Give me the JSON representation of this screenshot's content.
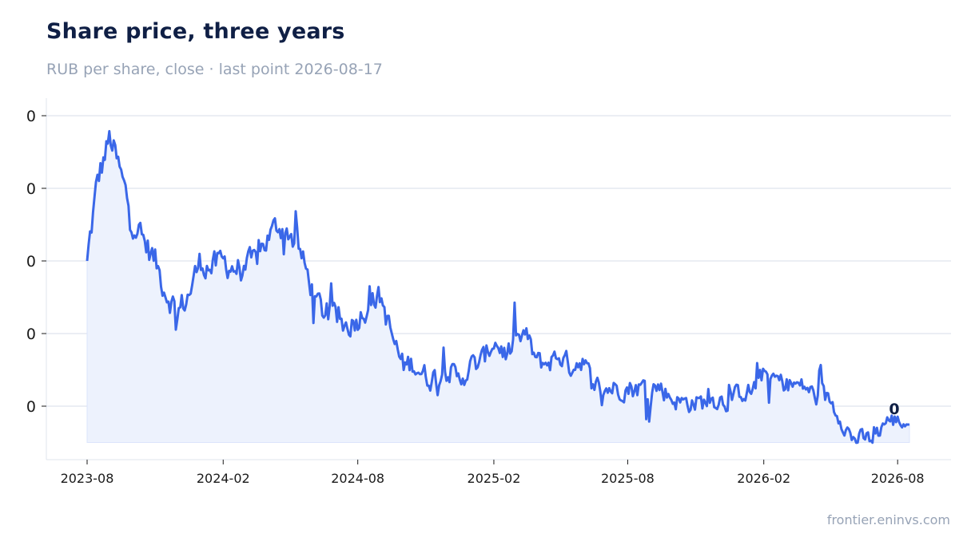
{
  "chart_data": {
    "type": "area",
    "title": "Share price, three years",
    "subtitle": "RUB per share, close · last point 2026-08-17",
    "source": "frontier.eninvs.com",
    "y_tick_labels": [
      "0",
      "0",
      "0",
      "0",
      "0"
    ],
    "x_tick_labels": [
      "2023-08",
      "2024-02",
      "2024-08",
      "2025-02",
      "2025-08",
      "2026-02",
      "2026-08"
    ],
    "end_label": "0",
    "line_color": "#3a67e8",
    "fill_color": "#edf2fd",
    "grid": true,
    "x_start": "2023-08-01",
    "x_end": "2026-08-17",
    "y_index_ticks": [
      0,
      1,
      2,
      3,
      4
    ],
    "y_index_lim": [
      -0.5,
      4.5
    ],
    "series": [
      {
        "x": [
          "2023-08-01",
          "2023-08-15",
          "2023-09-01",
          "2023-09-15",
          "2023-10-01",
          "2023-10-15",
          "2023-11-01",
          "2023-11-15",
          "2023-12-01",
          "2023-12-15",
          "2024-01-01",
          "2024-01-15",
          "2024-02-01",
          "2024-02-15",
          "2024-03-01",
          "2024-03-15",
          "2024-04-01",
          "2024-04-15",
          "2024-05-01",
          "2024-05-15",
          "2024-06-01",
          "2024-06-15",
          "2024-07-01",
          "2024-07-15",
          "2024-08-01",
          "2024-08-15",
          "2024-09-01",
          "2024-09-15",
          "2024-10-01",
          "2024-10-15",
          "2024-11-01",
          "2024-11-15",
          "2024-12-01",
          "2024-12-15",
          "2025-01-01",
          "2025-01-15",
          "2025-02-01",
          "2025-02-15",
          "2025-03-01",
          "2025-03-15",
          "2025-04-01",
          "2025-04-15",
          "2025-05-01",
          "2025-05-15",
          "2025-06-01",
          "2025-06-15",
          "2025-07-01",
          "2025-07-15",
          "2025-08-01",
          "2025-08-15",
          "2025-09-01",
          "2025-09-15",
          "2025-10-01",
          "2025-10-15",
          "2025-11-01",
          "2025-11-15",
          "2025-12-01",
          "2025-12-15",
          "2026-01-01",
          "2026-01-15",
          "2026-02-01",
          "2026-02-15",
          "2026-03-01",
          "2026-03-15",
          "2026-04-01",
          "2026-04-15",
          "2026-05-01",
          "2026-05-15",
          "2026-06-01",
          "2026-06-15",
          "2026-07-01",
          "2026-07-15",
          "2026-08-01",
          "2026-08-17"
        ],
        "y": [
          2.0,
          3.1,
          3.7,
          3.2,
          2.6,
          2.3,
          2.0,
          1.6,
          1.3,
          1.5,
          2.0,
          1.9,
          2.0,
          1.9,
          1.9,
          2.0,
          2.3,
          2.5,
          2.4,
          2.1,
          1.6,
          1.3,
          1.2,
          1.1,
          1.2,
          1.4,
          1.5,
          1.0,
          0.55,
          0.6,
          0.4,
          0.4,
          0.5,
          0.35,
          0.55,
          0.6,
          0.9,
          0.75,
          0.8,
          1.0,
          0.6,
          0.6,
          0.7,
          0.55,
          0.65,
          0.3,
          0.25,
          0.25,
          0.25,
          0.25,
          0.3,
          0.25,
          0.1,
          0.05,
          0.05,
          0.05,
          0.1,
          0.05,
          0.2,
          0.2,
          0.45,
          0.4,
          0.3,
          0.3,
          0.25,
          0.1,
          0.1,
          -0.15,
          -0.45,
          -0.45,
          -0.45,
          -0.2,
          -0.2,
          -0.25
        ]
      }
    ]
  }
}
